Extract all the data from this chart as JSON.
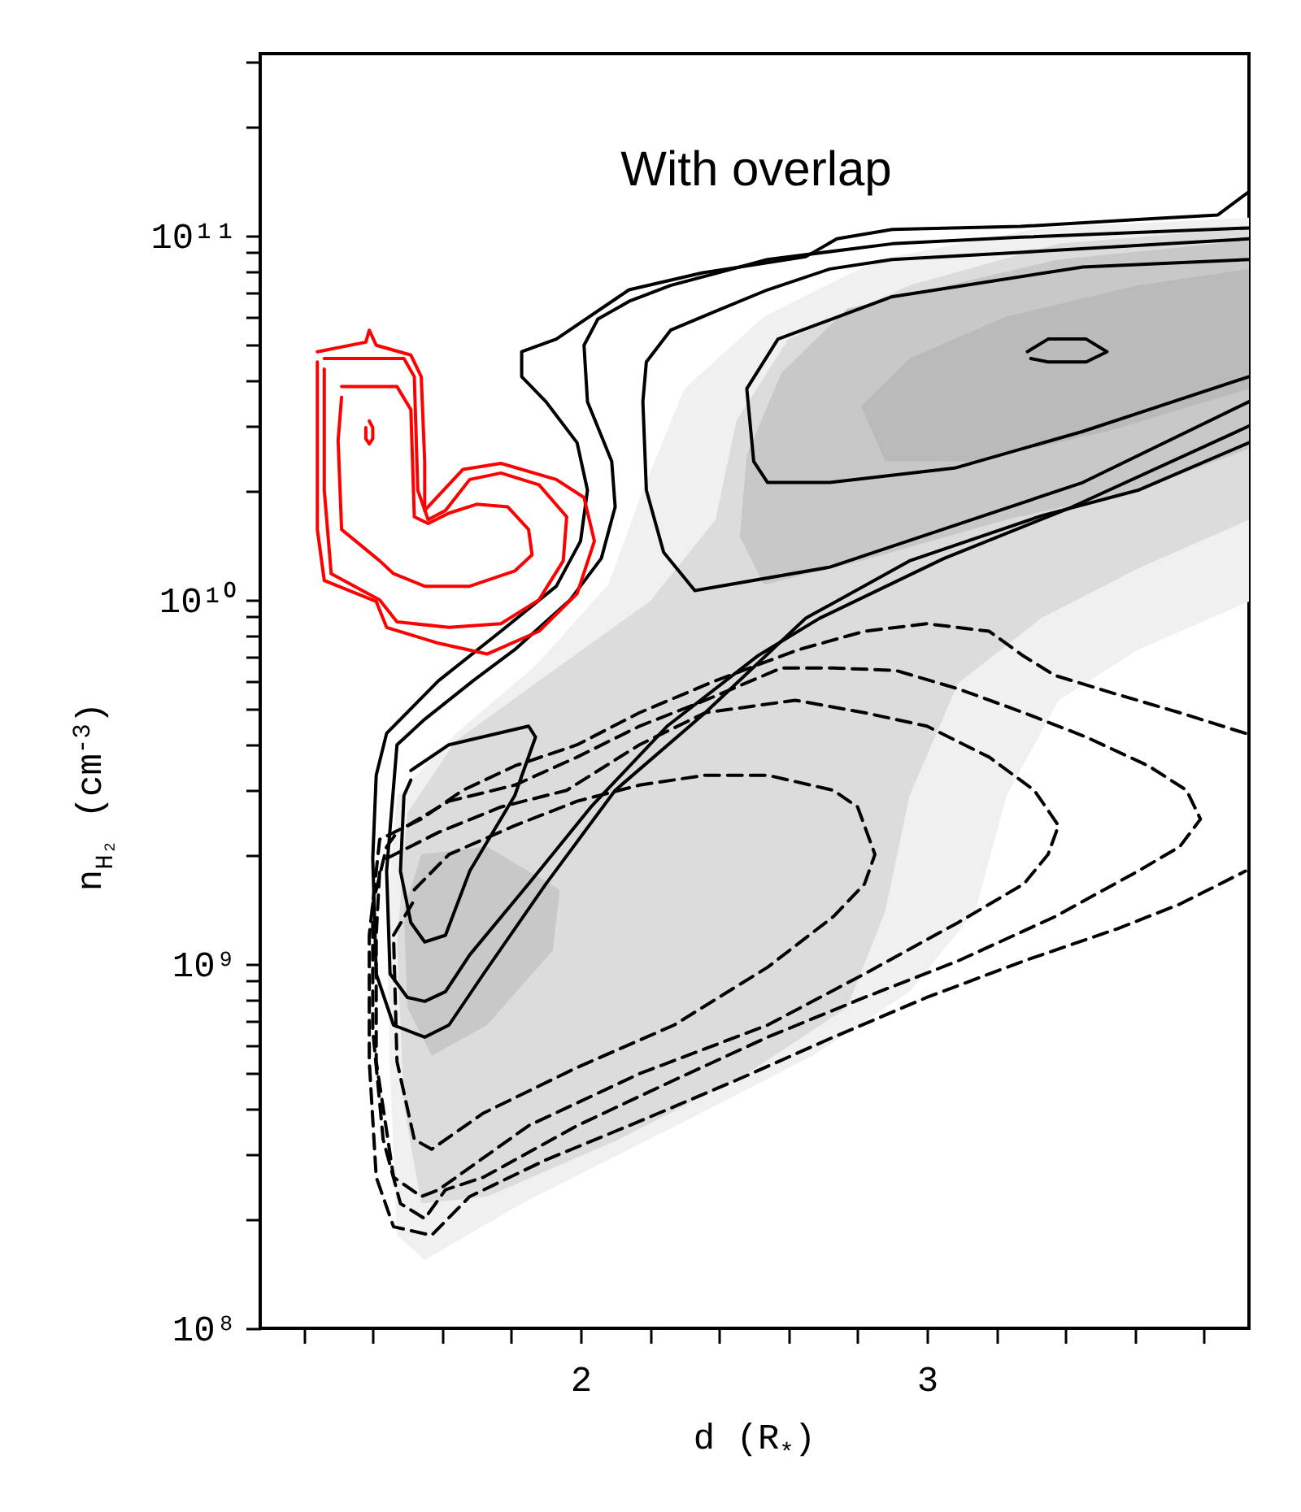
{
  "chart_data": {
    "type": "line",
    "title": "With overlap",
    "xlabel": "d (R$_{*}$)",
    "ylabel": "n$_{H₂}$ (cm$^{-3}$)",
    "log": "y",
    "xlim": [
      1.075,
      3.93
    ],
    "ylim": [
      100000000.0,
      316000000000.0
    ],
    "xticks": [
      {
        "value": 1.2,
        "label": null
      },
      {
        "value": 1.4,
        "label": null
      },
      {
        "value": 1.6,
        "label": null
      },
      {
        "value": 1.8,
        "label": null
      },
      2,
      {
        "value": 2.2,
        "label": null
      },
      {
        "value": 2.4,
        "label": null
      },
      {
        "value": 2.6,
        "label": null
      },
      {
        "value": 2.8,
        "label": null
      },
      3,
      {
        "value": 3.2,
        "label": null
      },
      {
        "value": 3.4,
        "label": null
      },
      {
        "value": 3.6,
        "label": null
      },
      {
        "value": 3.8,
        "label": null
      }
    ],
    "yticks": [
      {
        "value": 100000000.0,
        "label": "10⁸"
      },
      {
        "value": 200000000.0,
        "label": null
      },
      {
        "value": 300000000.0,
        "label": null
      },
      {
        "value": 400000000.0,
        "label": null
      },
      {
        "value": 500000000.0,
        "label": null
      },
      {
        "value": 600000000.0,
        "label": null
      },
      {
        "value": 700000000.0,
        "label": null
      },
      {
        "value": 800000000.0,
        "label": null
      },
      {
        "value": 900000000.0,
        "label": null
      },
      {
        "value": 1000000000.0,
        "label": "10⁹"
      },
      {
        "value": 2000000000.0,
        "label": null
      },
      {
        "value": 3000000000.0,
        "label": null
      },
      {
        "value": 4000000000.0,
        "label": null
      },
      {
        "value": 5000000000.0,
        "label": null
      },
      {
        "value": 6000000000.0,
        "label": null
      },
      {
        "value": 7000000000.0,
        "label": null
      },
      {
        "value": 8000000000.0,
        "label": null
      },
      {
        "value": 9000000000.0,
        "label": null
      },
      {
        "value": 10000000000.0,
        "label": "10¹⁰"
      },
      {
        "value": 20000000000.0,
        "label": null
      },
      {
        "value": 30000000000.0,
        "label": null
      },
      {
        "value": 40000000000.0,
        "label": null
      },
      {
        "value": 50000000000.0,
        "label": null
      },
      {
        "value": 60000000000.0,
        "label": null
      },
      {
        "value": 70000000000.0,
        "label": null
      },
      {
        "value": 80000000000.0,
        "label": null
      },
      {
        "value": 90000000000.0,
        "label": null
      },
      {
        "value": 100000000000.0,
        "label": "10¹¹"
      },
      {
        "value": 200000000000.0,
        "label": null
      },
      {
        "value": 300000000000.0,
        "label": null
      }
    ],
    "series": [
      {
        "type": "area",
        "color": "#f0f0f0",
        "x": [
          3.93,
          3.33,
          2.86,
          2.53,
          2.3,
          2.18,
          2.08,
          1.87,
          1.64,
          1.47,
          1.44,
          1.45,
          1.47,
          1.55,
          1.83,
          2.3,
          2.67,
          2.95,
          3.14,
          3.23,
          3.38,
          3.61,
          3.93
        ],
        "values": [
          112000000000.0,
          105000000000.0,
          86000000000.0,
          60000000000.0,
          38000000000.0,
          20000000000.0,
          11000000000.0,
          6600000000.0,
          4300000000.0,
          2900000000.0,
          1400000000.0,
          500000000.0,
          180000000.0,
          154000000.0,
          220000000.0,
          370000000.0,
          560000000.0,
          840000000.0,
          1400000000.0,
          2900000000.0,
          5300000000.0,
          7300000000.0,
          9900000000.0
        ]
      },
      {
        "type": "area",
        "color": "#dcdcdc",
        "x": [
          3.93,
          3.38,
          2.95,
          2.6,
          2.45,
          2.39,
          2.2,
          1.87,
          1.64,
          1.5,
          1.47,
          1.49,
          1.54,
          1.73,
          2.11,
          2.48,
          2.77,
          2.88,
          2.95,
          3.09,
          3.33,
          3.61,
          3.93
        ],
        "values": [
          105000000000.0,
          95000000000.0,
          73000000000.0,
          52000000000.0,
          31000000000.0,
          16600000000.0,
          9900000000.0,
          5900000000.0,
          4100000000.0,
          2600000000.0,
          1140000000.0,
          410000000.0,
          220000000.0,
          230000000.0,
          330000000.0,
          500000000.0,
          760000000.0,
          1400000000.0,
          2900000000.0,
          5900000000.0,
          8900000000.0,
          12200000000.0,
          16600000000.0
        ]
      },
      {
        "type": "area",
        "color": "#c8c8c8",
        "x": [
          3.93,
          3.38,
          2.77,
          2.58,
          2.48,
          2.46,
          2.53,
          2.81,
          3.23,
          3.61,
          3.93
        ],
        "values": [
          97000000000.0,
          86000000000.0,
          63000000000.0,
          42000000000.0,
          25000000000.0,
          14900000000.0,
          11000000000.0,
          12800000000.0,
          16600000000.0,
          20000000000.0,
          26000000000.0
        ]
      },
      {
        "type": "area",
        "color": "#c8c8c8",
        "x": [
          1.54,
          1.73,
          1.94,
          1.92,
          1.73,
          1.57,
          1.5,
          1.49
        ],
        "values": [
          2000000000.0,
          2100000000.0,
          1600000000.0,
          1090000000.0,
          680000000.0,
          560000000.0,
          760000000.0,
          1400000000.0
        ]
      },
      {
        "type": "area",
        "color": "#bababa",
        "x": [
          3.93,
          3.61,
          3.23,
          2.95,
          2.81,
          2.88,
          3.14,
          3.52,
          3.93
        ],
        "values": [
          81000000000.0,
          73000000000.0,
          60000000000.0,
          46000000000.0,
          34000000000.0,
          24000000000.0,
          24000000000.0,
          29000000000.0,
          38000000000.0
        ]
      },
      {
        "type": "line",
        "color": "#000000",
        "line_style": "solid",
        "x": [
          3.93,
          3.84,
          3.63,
          3.27,
          2.9,
          2.74,
          2.65,
          2.35,
          2.14,
          1.93,
          1.83,
          1.83,
          1.9,
          1.99,
          2.02,
          2.0,
          1.93,
          1.77,
          1.59,
          1.44,
          1.41,
          1.4,
          1.41,
          1.46,
          1.55,
          1.62,
          1.72,
          1.9,
          2.1,
          2.36,
          2.65,
          2.95,
          3.33,
          3.61,
          3.93
        ],
        "values": [
          132000000000.0,
          114000000000.0,
          111000000000.0,
          106000000000.0,
          104000000000.0,
          98000000000.0,
          87500000000.0,
          79000000000.0,
          71000000000.0,
          52000000000.0,
          48000000000.0,
          41000000000.0,
          35000000000.0,
          27000000000.0,
          20000000000.0,
          14500000000.0,
          10900000000.0,
          8200000000.0,
          6000000000.0,
          4300000000.0,
          3300000000.0,
          1950000000.0,
          940000000.0,
          680000000.0,
          630000000.0,
          680000000.0,
          940000000.0,
          1660000000.0,
          3000000000.0,
          4900000000.0,
          8900000000.0,
          12800000000.0,
          17000000000.0,
          20000000000.0,
          27000000000.0
        ]
      },
      {
        "type": "line",
        "color": "#000000",
        "line_style": "solid",
        "x": [
          3.93,
          3.27,
          2.9,
          2.54,
          2.26,
          2.14,
          2.05,
          2.01,
          2.02,
          2.09,
          2.1,
          2.06,
          1.97,
          1.81,
          1.69,
          1.55,
          1.47,
          1.44,
          1.45,
          1.5,
          1.55,
          1.61,
          1.68,
          1.85,
          2.03,
          2.25,
          2.51,
          2.69,
          3.05,
          3.42,
          3.93
        ],
        "values": [
          105000000000.0,
          99000000000.0,
          95000000000.0,
          86000000000.0,
          73000000000.0,
          66000000000.0,
          59000000000.0,
          50000000000.0,
          35000000000.0,
          24000000000.0,
          18000000000.0,
          13000000000.0,
          10000000000.0,
          7300000000.0,
          6000000000.0,
          4700000000.0,
          4000000000.0,
          1800000000.0,
          940000000.0,
          810000000.0,
          790000000.0,
          840000000.0,
          1060000000.0,
          1660000000.0,
          2700000000.0,
          4500000000.0,
          7000000000.0,
          8900000000.0,
          13000000000.0,
          18000000000.0,
          30000000000.0
        ]
      },
      {
        "type": "line",
        "color": "#000000",
        "line_style": "solid",
        "x": [
          3.93,
          3.27,
          2.9,
          2.72,
          2.54,
          2.39,
          2.26,
          2.19,
          2.18,
          2.19,
          2.24,
          2.33,
          2.72,
          3.08,
          3.45,
          3.93
        ],
        "values": [
          98000000000.0,
          90000000000.0,
          86000000000.0,
          81000000000.0,
          71000000000.0,
          62000000000.0,
          55000000000.0,
          45000000000.0,
          35000000000.0,
          20000000000.0,
          13500000000.0,
          10600000000.0,
          12300000000.0,
          16000000000.0,
          21000000000.0,
          35000000000.0
        ]
      },
      {
        "type": "line",
        "color": "#000000",
        "line_style": "solid",
        "x": [
          1.51,
          1.62,
          1.85,
          1.87,
          1.81,
          1.68,
          1.61,
          1.55,
          1.51,
          1.48,
          1.49,
          1.51
        ],
        "values": [
          3400000000.0,
          4000000000.0,
          4500000000.0,
          4200000000.0,
          2900000000.0,
          1800000000.0,
          1200000000.0,
          1150000000.0,
          1300000000.0,
          1800000000.0,
          2900000000.0,
          3200000000.0
        ]
      },
      {
        "type": "line",
        "color": "#000000",
        "line_style": "solid",
        "x": [
          3.93,
          3.45,
          2.9,
          2.57,
          2.48,
          2.5,
          2.54,
          2.72,
          3.08,
          3.45,
          3.93
        ],
        "values": [
          86000000000.0,
          82000000000.0,
          68000000000.0,
          52000000000.0,
          38000000000.0,
          24000000000.0,
          21000000000.0,
          21000000000.0,
          23000000000.0,
          29000000000.0,
          41000000000.0
        ]
      },
      {
        "type": "line",
        "color": "#000000",
        "line_style": "solid",
        "x": [
          3.29,
          3.35,
          3.46,
          3.52,
          3.46,
          3.35,
          3.3
        ],
        "values": [
          48000000000.0,
          52000000000.0,
          52000000000.0,
          48000000000.0,
          45000000000.0,
          45000000000.0,
          46000000000.0
        ]
      },
      {
        "type": "line",
        "color": "#ff0000",
        "line_style": "solid",
        "x": [
          1.24,
          1.38,
          1.39,
          1.41,
          1.51,
          1.54,
          1.55,
          1.55,
          1.66,
          1.77,
          1.93,
          2.01,
          2.04,
          1.99,
          1.88,
          1.73,
          1.59,
          1.44,
          1.41,
          1.26,
          1.24,
          1.24
        ],
        "values": [
          48000000000.0,
          51000000000.0,
          55000000000.0,
          50000000000.0,
          47000000000.0,
          41000000000.0,
          24000000000.0,
          17600000000.0,
          22800000000.0,
          23700000000.0,
          21400000000.0,
          19100000000.0,
          14500000000.0,
          10400000000.0,
          8200000000.0,
          7100000000.0,
          7600000000.0,
          8400000000.0,
          9900000000.0,
          11300000000.0,
          15600000000.0,
          45000000000.0
        ]
      },
      {
        "type": "line",
        "color": "#ff0000",
        "line_style": "solid",
        "x": [
          1.26,
          1.49,
          1.52,
          1.53,
          1.56,
          1.61,
          1.68,
          1.77,
          1.88,
          1.96,
          1.95,
          1.88,
          1.77,
          1.62,
          1.47,
          1.42,
          1.28,
          1.26,
          1.26
        ],
        "values": [
          46000000000.0,
          46000000000.0,
          41000000000.0,
          20000000000.0,
          16600000000.0,
          17600000000.0,
          21400000000.0,
          22300000000.0,
          20700000000.0,
          16900000000.0,
          12800000000.0,
          10000000000.0,
          8600000000.0,
          8400000000.0,
          8700000000.0,
          10000000000.0,
          11800000000.0,
          20000000000.0,
          43000000000.0
        ]
      },
      {
        "type": "line",
        "color": "#ff0000",
        "line_style": "solid",
        "x": [
          1.31,
          1.47,
          1.51,
          1.52,
          1.56,
          1.62,
          1.7,
          1.79,
          1.85,
          1.86,
          1.81,
          1.68,
          1.55,
          1.46,
          1.42,
          1.31,
          1.3,
          1.31
        ],
        "values": [
          38500000000.0,
          38500000000.0,
          33300000000.0,
          16900000000.0,
          16200000000.0,
          17300000000.0,
          18300000000.0,
          18000000000.0,
          15600000000.0,
          13300000000.0,
          12000000000.0,
          10900000000.0,
          10900000000.0,
          11800000000.0,
          12800000000.0,
          15600000000.0,
          27400000000.0,
          36000000000.0
        ]
      },
      {
        "type": "line",
        "color": "#ff0000",
        "line_style": "solid",
        "x": [
          1.39,
          1.4,
          1.4,
          1.39,
          1.38,
          1.38
        ],
        "values": [
          31000000000.0,
          29700000000.0,
          27700000000.0,
          26800000000.0,
          27700000000.0,
          29700000000.0
        ]
      },
      {
        "type": "line",
        "color": "#000000",
        "line_style": "dashed",
        "x": [
          1.52,
          1.62,
          1.81,
          1.99,
          2.17,
          2.36,
          2.54,
          2.73,
          2.8,
          2.85,
          2.82,
          2.73,
          2.54,
          2.27,
          1.99,
          1.72,
          1.57,
          1.52,
          1.47,
          1.46,
          1.52
        ],
        "values": [
          1600000000.0,
          2000000000.0,
          2400000000.0,
          2800000000.0,
          3100000000.0,
          3300000000.0,
          3300000000.0,
          3000000000.0,
          2700000000.0,
          2000000000.0,
          1660000000.0,
          1350000000.0,
          980000000.0,
          680000000.0,
          520000000.0,
          390000000.0,
          310000000.0,
          330000000.0,
          540000000.0,
          1200000000.0,
          1500000000.0
        ]
      },
      {
        "type": "line",
        "color": "#000000",
        "line_style": "dashed",
        "x": [
          1.44,
          1.59,
          1.77,
          1.96,
          2.17,
          2.36,
          2.62,
          2.82,
          3.0,
          3.18,
          3.31,
          3.38,
          3.35,
          3.28,
          3.09,
          2.82,
          2.54,
          2.17,
          1.85,
          1.59,
          1.54,
          1.46,
          1.41,
          1.41,
          1.42
        ],
        "values": [
          1950000000.0,
          2300000000.0,
          2700000000.0,
          3000000000.0,
          4000000000.0,
          4900000000.0,
          5300000000.0,
          4900000000.0,
          4500000000.0,
          3700000000.0,
          3000000000.0,
          2400000000.0,
          2000000000.0,
          1660000000.0,
          1300000000.0,
          940000000.0,
          680000000.0,
          500000000.0,
          360000000.0,
          240000000.0,
          230000000.0,
          260000000.0,
          540000000.0,
          1200000000.0,
          1800000000.0
        ]
      },
      {
        "type": "line",
        "color": "#000000",
        "line_style": "dashed",
        "x": [
          1.5,
          1.62,
          1.81,
          1.99,
          2.17,
          2.36,
          2.58,
          2.73,
          2.91,
          3.09,
          3.28,
          3.46,
          3.64,
          3.75,
          3.79,
          3.73,
          3.61,
          3.37,
          3.09,
          2.82,
          2.54,
          2.27,
          1.99,
          1.72,
          1.61,
          1.55,
          1.48,
          1.43,
          1.4,
          1.4,
          1.44,
          1.47
        ],
        "values": [
          2400000000.0,
          2800000000.0,
          3100000000.0,
          3700000000.0,
          4500000000.0,
          5300000000.0,
          6500000000.0,
          6500000000.0,
          6400000000.0,
          5700000000.0,
          4900000000.0,
          4200000000.0,
          3500000000.0,
          3000000000.0,
          2500000000.0,
          2100000000.0,
          1800000000.0,
          1350000000.0,
          1020000000.0,
          810000000.0,
          630000000.0,
          480000000.0,
          360000000.0,
          260000000.0,
          240000000.0,
          200000000.0,
          220000000.0,
          330000000.0,
          660000000.0,
          1460000000.0,
          2100000000.0,
          2300000000.0
        ]
      },
      {
        "type": "line",
        "color": "#000000",
        "line_style": "dashed",
        "x": [
          3.92,
          3.73,
          3.55,
          3.37,
          3.28,
          3.18,
          3.0,
          2.82,
          2.63,
          2.39,
          2.17,
          1.99,
          1.81,
          1.66,
          1.54,
          1.42,
          1.39,
          1.39,
          1.41,
          1.46,
          1.57,
          1.68,
          1.9,
          2.17,
          2.45,
          2.73,
          3.0,
          3.28,
          3.55,
          3.73,
          3.92
        ],
        "values": [
          4300000000.0,
          4900000000.0,
          5500000000.0,
          6200000000.0,
          7000000000.0,
          8200000000.0,
          8600000000.0,
          8200000000.0,
          7300000000.0,
          6000000000.0,
          4900000000.0,
          4000000000.0,
          3500000000.0,
          3000000000.0,
          2500000000.0,
          2200000000.0,
          1200000000.0,
          540000000.0,
          260000000.0,
          190000000.0,
          180000000.0,
          230000000.0,
          290000000.0,
          370000000.0,
          480000000.0,
          630000000.0,
          810000000.0,
          1020000000.0,
          1250000000.0,
          1460000000.0,
          1800000000.0
        ]
      }
    ]
  }
}
